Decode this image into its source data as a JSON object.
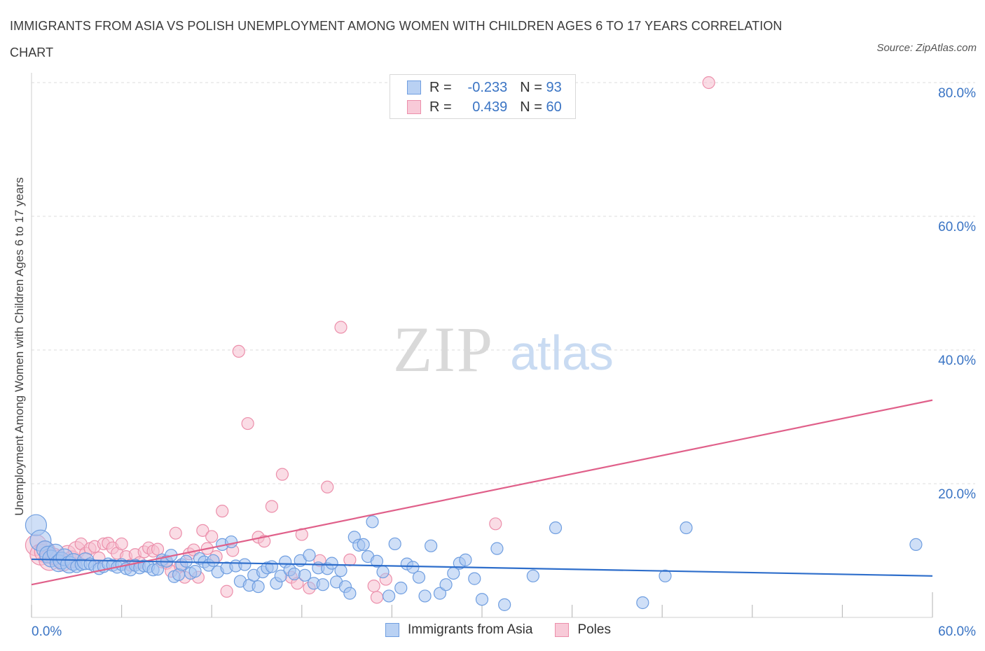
{
  "title": "IMMIGRANTS FROM ASIA VS POLISH UNEMPLOYMENT AMONG WOMEN WITH CHILDREN AGES 6 TO 17 YEARS CORRELATION CHART",
  "source": "Source: ZipAtlas.com",
  "watermark": {
    "zip": "ZIP",
    "atlas": "atlas"
  },
  "legend": {
    "r_label": "R =",
    "n_label": "N =",
    "rows": [
      {
        "r": "-0.233",
        "n": "93"
      },
      {
        "r": "0.439",
        "n": "60"
      }
    ]
  },
  "colors": {
    "blue_fill": "#a8c5f0",
    "blue_stroke": "#6f9ee0",
    "blue_line": "#2e6ecb",
    "pink_fill": "#f6bfd0",
    "pink_stroke": "#ec8fab",
    "pink_line": "#e0608a",
    "tick_label": "#3a74c4",
    "grid": "#dcdcdc"
  },
  "chart_data": {
    "type": "scatter",
    "title": "IMMIGRANTS FROM ASIA VS POLISH UNEMPLOYMENT AMONG WOMEN WITH CHILDREN AGES 6 TO 17 YEARS CORRELATION CHART",
    "xlabel": "",
    "ylabel": "Unemployment Among Women with Children Ages 6 to 17 years",
    "xlim": [
      0,
      60
    ],
    "ylim": [
      0,
      80
    ],
    "x_tick_labels": [
      "0.0%",
      "60.0%"
    ],
    "y_ticks": [
      20,
      40,
      60,
      80
    ],
    "y_tick_labels": [
      "20.0%",
      "40.0%",
      "60.0%",
      "80.0%"
    ],
    "grid": true,
    "legend_position": "top-center",
    "series": [
      {
        "name": "Immigrants from Asia",
        "R": -0.233,
        "N": 93,
        "trend": {
          "x0": 0,
          "y0": 8.7,
          "x1": 60,
          "y1": 6.2
        },
        "points": [
          [
            0.3,
            13.8,
            3
          ],
          [
            0.6,
            11.5,
            3
          ],
          [
            0.9,
            10.2,
            2
          ],
          [
            1.1,
            9.4,
            2
          ],
          [
            1.3,
            8.8,
            2
          ],
          [
            1.6,
            9.7,
            2
          ],
          [
            1.8,
            8.1,
            2
          ],
          [
            2.0,
            8.5,
            2
          ],
          [
            2.2,
            9.0,
            2
          ],
          [
            2.5,
            7.9,
            2
          ],
          [
            2.8,
            8.3,
            2
          ],
          [
            3.0,
            7.6,
            1
          ],
          [
            3.3,
            7.9,
            1
          ],
          [
            3.6,
            8.4,
            2
          ],
          [
            3.9,
            8.0,
            1
          ],
          [
            4.2,
            7.7,
            1
          ],
          [
            4.5,
            7.3,
            1
          ],
          [
            4.8,
            7.6,
            1
          ],
          [
            5.1,
            8.0,
            1
          ],
          [
            5.4,
            7.8,
            1
          ],
          [
            5.7,
            7.5,
            1
          ],
          [
            6.0,
            7.9,
            1
          ],
          [
            6.3,
            7.3,
            1
          ],
          [
            6.6,
            7.1,
            1
          ],
          [
            6.9,
            7.8,
            1
          ],
          [
            7.2,
            7.4,
            1
          ],
          [
            7.5,
            7.7,
            1
          ],
          [
            7.8,
            7.6,
            1
          ],
          [
            8.1,
            7.1,
            1
          ],
          [
            8.4,
            7.2,
            1
          ],
          [
            8.7,
            8.6,
            1
          ],
          [
            9.0,
            8.4,
            1
          ],
          [
            9.3,
            9.3,
            1
          ],
          [
            9.5,
            6.1,
            1
          ],
          [
            9.8,
            6.4,
            1
          ],
          [
            10.0,
            7.9,
            1
          ],
          [
            10.3,
            8.4,
            1
          ],
          [
            10.6,
            6.6,
            1
          ],
          [
            10.9,
            6.9,
            1
          ],
          [
            11.2,
            8.8,
            1
          ],
          [
            11.5,
            8.3,
            1
          ],
          [
            11.8,
            7.8,
            1
          ],
          [
            12.1,
            8.5,
            1
          ],
          [
            12.4,
            6.8,
            1
          ],
          [
            12.7,
            10.9,
            1
          ],
          [
            13.0,
            7.4,
            1
          ],
          [
            13.3,
            11.3,
            1
          ],
          [
            13.6,
            7.7,
            1
          ],
          [
            13.9,
            5.4,
            1
          ],
          [
            14.2,
            7.9,
            1
          ],
          [
            14.5,
            4.8,
            1
          ],
          [
            14.8,
            6.3,
            1
          ],
          [
            15.1,
            4.6,
            1
          ],
          [
            15.4,
            6.8,
            1
          ],
          [
            15.7,
            7.4,
            1
          ],
          [
            16.0,
            7.6,
            1
          ],
          [
            16.3,
            5.1,
            1
          ],
          [
            16.6,
            6.2,
            1
          ],
          [
            16.9,
            8.3,
            1
          ],
          [
            17.2,
            7.1,
            1
          ],
          [
            17.5,
            6.5,
            1
          ],
          [
            17.9,
            8.5,
            1
          ],
          [
            18.2,
            6.3,
            1
          ],
          [
            18.5,
            9.3,
            1
          ],
          [
            18.8,
            5.1,
            1
          ],
          [
            19.1,
            7.4,
            1
          ],
          [
            19.4,
            4.9,
            1
          ],
          [
            19.7,
            7.3,
            1
          ],
          [
            20.0,
            8.1,
            1
          ],
          [
            20.3,
            5.3,
            1
          ],
          [
            20.6,
            7.0,
            1
          ],
          [
            20.9,
            4.6,
            1
          ],
          [
            21.2,
            3.6,
            1
          ],
          [
            21.5,
            12.0,
            1
          ],
          [
            21.8,
            10.8,
            1
          ],
          [
            22.1,
            10.9,
            1
          ],
          [
            22.4,
            9.1,
            1
          ],
          [
            22.7,
            14.3,
            1
          ],
          [
            23.0,
            8.4,
            1
          ],
          [
            23.4,
            6.8,
            1
          ],
          [
            23.8,
            3.2,
            1
          ],
          [
            24.2,
            11.0,
            1
          ],
          [
            24.6,
            4.4,
            1
          ],
          [
            25.0,
            8.0,
            1
          ],
          [
            25.4,
            7.5,
            1
          ],
          [
            25.8,
            6.0,
            1
          ],
          [
            26.2,
            3.2,
            1
          ],
          [
            26.6,
            10.7,
            1
          ],
          [
            27.2,
            3.6,
            1
          ],
          [
            27.6,
            4.9,
            1
          ],
          [
            28.1,
            6.6,
            1
          ],
          [
            28.5,
            8.1,
            1
          ],
          [
            28.9,
            8.6,
            1
          ],
          [
            29.5,
            5.8,
            1
          ],
          [
            30.0,
            2.7,
            1
          ],
          [
            31.0,
            10.3,
            1
          ],
          [
            31.5,
            1.9,
            1
          ],
          [
            33.4,
            6.2,
            1
          ],
          [
            34.9,
            13.4,
            1
          ],
          [
            40.7,
            2.2,
            1
          ],
          [
            42.2,
            6.2,
            1
          ],
          [
            43.6,
            13.4,
            1
          ],
          [
            58.9,
            10.9,
            1
          ]
        ]
      },
      {
        "name": "Poles",
        "R": 0.439,
        "N": 60,
        "trend": {
          "x0": 0,
          "y0": 4.9,
          "x1": 60,
          "y1": 32.5
        },
        "points": [
          [
            0.3,
            10.8,
            3
          ],
          [
            0.6,
            9.4,
            3
          ],
          [
            0.9,
            9.8,
            3
          ],
          [
            1.2,
            8.6,
            3
          ],
          [
            1.5,
            9.1,
            2
          ],
          [
            1.8,
            8.8,
            2
          ],
          [
            2.1,
            8.2,
            2
          ],
          [
            2.4,
            9.5,
            2
          ],
          [
            2.7,
            8.7,
            2
          ],
          [
            3.0,
            10.1,
            2
          ],
          [
            3.3,
            11.0,
            1
          ],
          [
            3.6,
            9.6,
            1
          ],
          [
            3.9,
            10.3,
            1
          ],
          [
            4.2,
            10.6,
            1
          ],
          [
            4.5,
            8.9,
            1
          ],
          [
            4.8,
            11.0,
            1
          ],
          [
            5.1,
            11.1,
            1
          ],
          [
            5.4,
            10.4,
            1
          ],
          [
            5.7,
            9.6,
            1
          ],
          [
            6.0,
            11.0,
            1
          ],
          [
            6.3,
            9.1,
            1
          ],
          [
            6.6,
            7.8,
            1
          ],
          [
            6.9,
            9.4,
            1
          ],
          [
            7.2,
            8.2,
            1
          ],
          [
            7.5,
            9.8,
            1
          ],
          [
            7.8,
            10.4,
            1
          ],
          [
            8.1,
            9.9,
            1
          ],
          [
            8.4,
            10.2,
            1
          ],
          [
            8.7,
            8.3,
            1
          ],
          [
            9.0,
            8.1,
            1
          ],
          [
            9.3,
            6.9,
            1
          ],
          [
            9.6,
            12.6,
            1
          ],
          [
            9.9,
            7.7,
            1
          ],
          [
            10.2,
            6.0,
            1
          ],
          [
            10.5,
            9.5,
            1
          ],
          [
            10.8,
            10.1,
            1
          ],
          [
            11.1,
            6.0,
            1
          ],
          [
            11.4,
            13.0,
            1
          ],
          [
            11.7,
            10.3,
            1
          ],
          [
            12.0,
            12.1,
            1
          ],
          [
            12.3,
            9.1,
            1
          ],
          [
            12.7,
            15.9,
            1
          ],
          [
            13.0,
            3.9,
            1
          ],
          [
            13.4,
            10.0,
            1
          ],
          [
            13.8,
            39.8,
            1
          ],
          [
            14.4,
            29.0,
            1
          ],
          [
            15.1,
            12.0,
            1
          ],
          [
            15.5,
            11.4,
            1
          ],
          [
            16.0,
            16.6,
            1
          ],
          [
            16.7,
            21.4,
            1
          ],
          [
            17.3,
            6.0,
            1
          ],
          [
            17.7,
            5.1,
            1
          ],
          [
            18.0,
            12.4,
            1
          ],
          [
            18.5,
            4.4,
            1
          ],
          [
            19.2,
            8.5,
            1
          ],
          [
            19.7,
            19.5,
            1
          ],
          [
            20.6,
            43.4,
            1
          ],
          [
            21.2,
            8.6,
            1
          ],
          [
            22.8,
            4.7,
            1
          ],
          [
            23.0,
            3.0,
            1
          ],
          [
            23.6,
            5.7,
            1
          ],
          [
            30.9,
            14.0,
            1
          ],
          [
            45.1,
            80.0,
            1
          ]
        ]
      }
    ],
    "bottom_legend": [
      "Immigrants from Asia",
      "Poles"
    ]
  }
}
